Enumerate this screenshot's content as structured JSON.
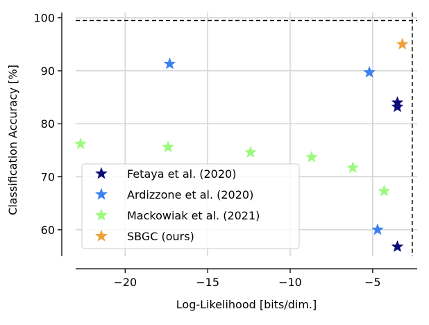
{
  "chart_data": {
    "type": "scatter",
    "xlabel": "Log-Likelihood [bits/dim.]",
    "ylabel": "Classification Accuracy [%]",
    "xlim": [
      -23,
      -2.3
    ],
    "ylim": [
      55,
      101
    ],
    "x_ticks": [
      -20,
      -15,
      -10,
      -5
    ],
    "x_tick_labels": [
      "−20",
      "−15",
      "−10",
      "−5"
    ],
    "y_ticks": [
      60,
      70,
      80,
      90,
      100
    ],
    "y_tick_labels": [
      "60",
      "70",
      "80",
      "90",
      "100"
    ],
    "grid": true,
    "legend_position": "lower-left",
    "reference_lines": {
      "horizontal_y": 99.5,
      "vertical_x": -2.6
    },
    "series": [
      {
        "name": "Fetaya et al. (2020)",
        "color": "#0a0a78",
        "marker": "star",
        "points": [
          [
            -3.5,
            84.0
          ],
          [
            -3.5,
            83.2
          ],
          [
            -3.5,
            56.8
          ]
        ]
      },
      {
        "name": "Ardizzone et al. (2020)",
        "color": "#3b82f0",
        "marker": "star",
        "points": [
          [
            -17.3,
            91.3
          ],
          [
            -5.2,
            89.7
          ],
          [
            -4.7,
            60.0
          ]
        ]
      },
      {
        "name": "Mackowiak et al. (2021)",
        "color": "#9afa7c",
        "marker": "star",
        "points": [
          [
            -22.7,
            76.2
          ],
          [
            -17.4,
            75.6
          ],
          [
            -12.4,
            74.6
          ],
          [
            -8.7,
            73.7
          ],
          [
            -6.2,
            71.7
          ],
          [
            -4.3,
            67.3
          ]
        ]
      },
      {
        "name": "SBGC (ours)",
        "color": "#f0a03a",
        "marker": "star",
        "points": [
          [
            -3.2,
            95.0
          ]
        ]
      }
    ]
  }
}
